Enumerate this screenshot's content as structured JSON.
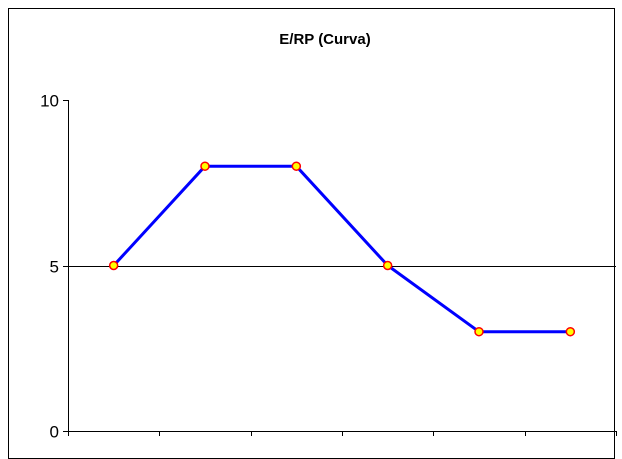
{
  "chart_data": {
    "type": "line",
    "title": "E/RP (Curva)",
    "xlabel": "",
    "ylabel": "",
    "categories": [
      "",
      "",
      "",
      "",
      "",
      ""
    ],
    "series": [
      {
        "values": [
          5,
          8,
          8,
          5,
          3,
          3
        ]
      }
    ],
    "ylim": [
      0,
      10
    ],
    "yticks": [
      0,
      5,
      10
    ],
    "ytick_labels": [
      "0",
      "5",
      "10"
    ],
    "grid": "horizontal line at 5",
    "legend": "none",
    "colors": {
      "line": "#0000ff",
      "marker_fill": "#ffff00",
      "marker_stroke": "#ff0000",
      "gridline": "#000000",
      "border": "#000000",
      "background": "#ffffff"
    }
  }
}
